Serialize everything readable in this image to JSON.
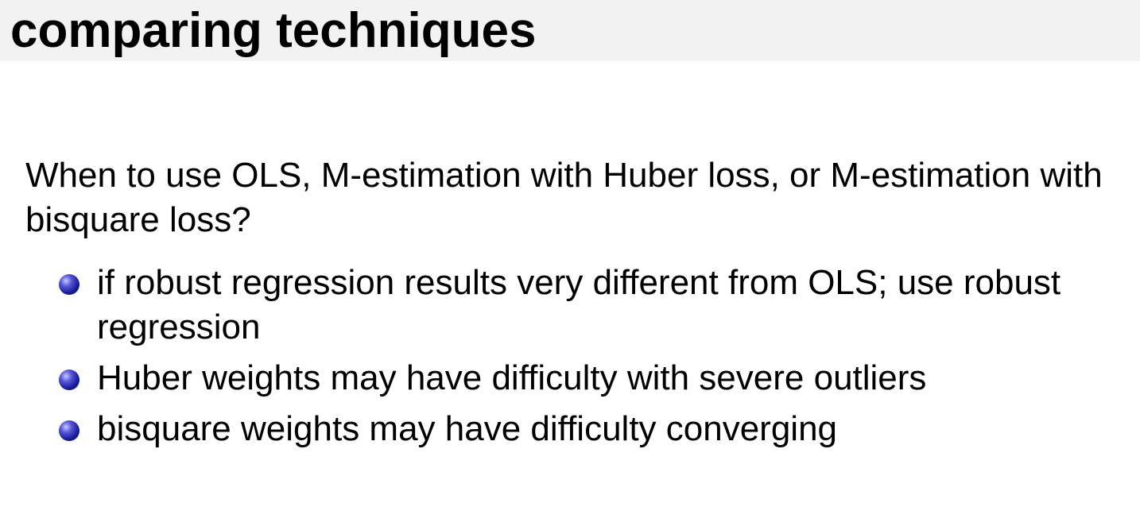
{
  "slide": {
    "title": "comparing techniques",
    "intro": "When to use OLS, M-estimation with Huber loss, or M-estimation with bisquare loss?",
    "bullets": [
      {
        "text": "if robust regression results very different from OLS; use robust regression"
      },
      {
        "text": "Huber weights may have difficulty with severe outliers"
      },
      {
        "text": "bisquare weights may have difficulty converging"
      }
    ],
    "colors": {
      "title_bar_background": "#f2f2f2",
      "bullet": "#1c1ca0",
      "text": "#000000"
    },
    "icons": {
      "bullet": "blue-ball-bullet-icon"
    }
  }
}
